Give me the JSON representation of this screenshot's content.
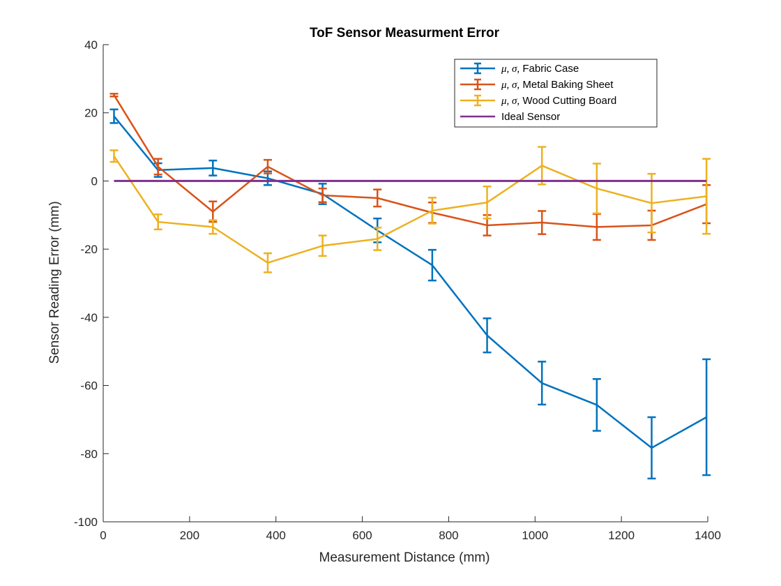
{
  "chart_data": {
    "type": "line",
    "title": "ToF Sensor Measurment Error",
    "xlabel": "Measurement Distance (mm)",
    "ylabel": "Sensor Reading Error (mm)",
    "xlim": [
      0,
      1400
    ],
    "ylim": [
      -100,
      40
    ],
    "xticks": [
      0,
      200,
      400,
      600,
      800,
      1000,
      1200,
      1400
    ],
    "yticks": [
      -100,
      -80,
      -60,
      -40,
      -20,
      0,
      20,
      40
    ],
    "grid": false,
    "legend_position": "top-right",
    "x": [
      25,
      127,
      254,
      381,
      508,
      635,
      762,
      889,
      1016,
      1143,
      1270,
      1397
    ],
    "series": [
      {
        "name": "μ, σ, Fabric Case",
        "name_math": "μ, σ,",
        "name_text": " Fabric Case",
        "color": "#0072BD",
        "values": [
          19,
          3.2,
          3.8,
          0.8,
          -3.8,
          -14.5,
          -24.7,
          -45.3,
          -59.3,
          -65.7,
          -78.3,
          -69.3
        ],
        "errors": [
          2,
          2,
          2.2,
          2,
          3,
          3.5,
          4.5,
          5,
          6.3,
          7.6,
          9,
          17
        ]
      },
      {
        "name": "μ, σ, Metal Baking Sheet",
        "name_math": "μ, σ,",
        "name_text": " Metal Baking Sheet",
        "color": "#D95319",
        "values": [
          25.2,
          4.2,
          -9,
          4.2,
          -4.2,
          -5,
          -9.3,
          -13,
          -12.2,
          -13.5,
          -13,
          -6.8
        ],
        "errors": [
          0.4,
          2.3,
          3,
          2,
          2,
          2.5,
          3,
          3,
          3.4,
          3.8,
          4.3,
          5.6
        ]
      },
      {
        "name": "μ, σ, Wood Cutting Board",
        "name_math": "μ, σ,",
        "name_text": " Wood Cutting Board",
        "color": "#EDB120",
        "values": [
          7.3,
          -12,
          -13.5,
          -24,
          -19,
          -17,
          -8.7,
          -6.3,
          4.5,
          -2.2,
          -6.5,
          -4.5
        ],
        "errors": [
          1.7,
          2.2,
          2,
          2.8,
          3,
          3.3,
          3.8,
          4.7,
          5.5,
          7.3,
          8.6,
          11
        ]
      },
      {
        "name": "Ideal Sensor",
        "color": "#7E2F8E",
        "x": [
          25,
          1397
        ],
        "values": [
          0,
          0
        ],
        "ideal": true
      }
    ]
  }
}
